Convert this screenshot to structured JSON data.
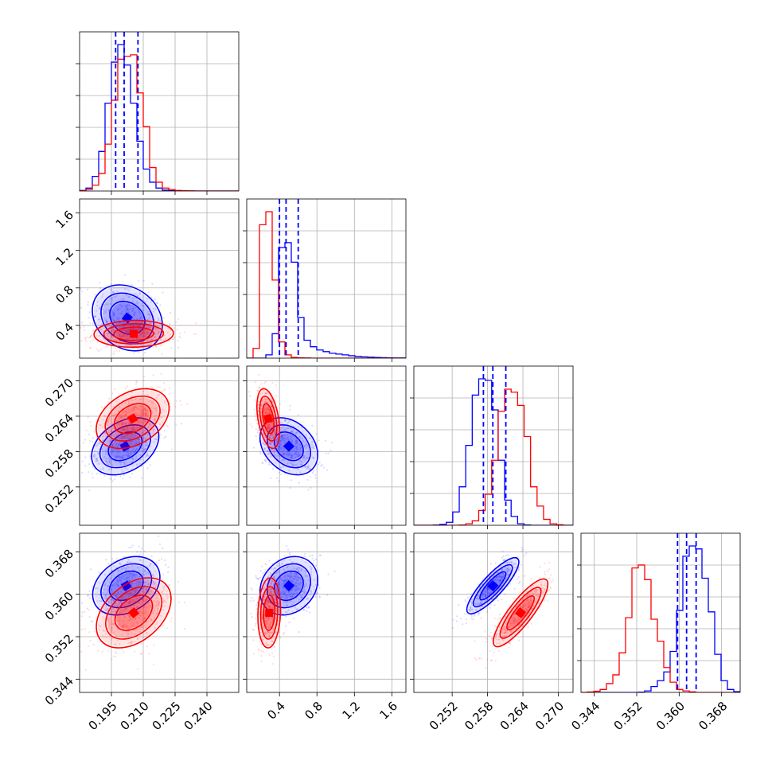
{
  "chart_data": {
    "type": "corner",
    "title": "",
    "series": [
      {
        "name": "",
        "color": "#0000ff"
      },
      {
        "name": "",
        "color": "#ff0000"
      }
    ],
    "parameters": [
      {
        "range": [
          0.18,
          0.255
        ],
        "ticks": [
          0.195,
          0.21,
          0.225,
          0.24
        ],
        "tick_labels": [
          "0.195",
          "0.210",
          "0.225",
          "0.240"
        ]
      },
      {
        "range": [
          0.05,
          1.75
        ],
        "ticks": [
          0.4,
          0.8,
          1.2,
          1.6
        ],
        "tick_labels": [
          "0.4",
          "0.8",
          "1.2",
          "1.6"
        ]
      },
      {
        "range": [
          0.2455,
          0.2725
        ],
        "ticks": [
          0.252,
          0.258,
          0.264,
          0.27
        ],
        "tick_labels": [
          "0.252",
          "0.258",
          "0.264",
          "0.270"
        ]
      },
      {
        "range": [
          0.3415,
          0.3715
        ],
        "ticks": [
          0.344,
          0.352,
          0.36,
          0.368
        ],
        "tick_labels": [
          "0.344",
          "0.352",
          "0.360",
          "0.368"
        ]
      }
    ],
    "quantile_lines": {
      "series": "blue",
      "values": [
        [
          0.197,
          0.201,
          0.2075
        ],
        [
          0.4,
          0.47,
          0.6
        ],
        [
          0.2573,
          0.2589,
          0.2611
        ],
        [
          0.3597,
          0.3614,
          0.3632
        ]
      ]
    },
    "histograms": [
      {
        "edges": [
          0.18,
          0.183,
          0.186,
          0.189,
          0.192,
          0.195,
          0.198,
          0.201,
          0.204,
          0.207,
          0.21,
          0.213,
          0.216,
          0.219,
          0.222,
          0.225,
          0.228,
          0.231,
          0.234,
          0.237,
          0.24,
          0.243,
          0.246,
          0.249,
          0.252,
          0.255
        ],
        "blue": [
          0.004,
          0.02,
          0.1,
          0.27,
          0.6,
          0.88,
          1.0,
          0.86,
          0.6,
          0.34,
          0.15,
          0.06,
          0.02,
          0.006,
          0.002,
          0.001,
          0,
          0,
          0,
          0,
          0,
          0,
          0,
          0,
          0
        ],
        "red": [
          0.002,
          0.01,
          0.04,
          0.12,
          0.32,
          0.62,
          0.9,
          0.92,
          0.93,
          0.67,
          0.44,
          0.16,
          0.06,
          0.02,
          0.01,
          0.004,
          0.002,
          0.001,
          0,
          0,
          0,
          0,
          0,
          0,
          0
        ]
      },
      {
        "edges": [
          0.05,
          0.118,
          0.186,
          0.254,
          0.322,
          0.39,
          0.458,
          0.526,
          0.594,
          0.662,
          0.73,
          0.798,
          0.866,
          0.934,
          1.002,
          1.07,
          1.138,
          1.206,
          1.274,
          1.342,
          1.41,
          1.478,
          1.546,
          1.614,
          1.682,
          1.75
        ],
        "blue": [
          0,
          0,
          0,
          0.02,
          0.15,
          0.68,
          0.71,
          0.59,
          0.25,
          0.11,
          0.07,
          0.05,
          0.04,
          0.03,
          0.025,
          0.02,
          0.015,
          0.01,
          0.008,
          0.006,
          0.004,
          0.003,
          0.002,
          0.001,
          0.001
        ],
        "red": [
          0,
          0.06,
          0.82,
          0.9,
          0.48,
          0.1,
          0.02,
          0.004,
          0.002,
          0.001,
          0,
          0,
          0,
          0,
          0,
          0,
          0,
          0,
          0,
          0,
          0,
          0,
          0,
          0,
          0
        ]
      },
      {
        "edges": [
          0.2455,
          0.2466,
          0.2477,
          0.2488,
          0.2499,
          0.251,
          0.2521,
          0.2532,
          0.2543,
          0.2554,
          0.2565,
          0.2576,
          0.2587,
          0.2598,
          0.2609,
          0.262,
          0.2631,
          0.2642,
          0.2653,
          0.2664,
          0.2675,
          0.2686,
          0.2697,
          0.2708,
          0.2719,
          0.273
        ],
        "blue": [
          0,
          0,
          0,
          0.002,
          0.006,
          0.02,
          0.09,
          0.26,
          0.54,
          0.88,
          0.99,
          0.98,
          0.78,
          0.44,
          0.17,
          0.06,
          0.01,
          0.002,
          0,
          0,
          0,
          0,
          0,
          0,
          0
        ],
        "red": [
          0,
          0,
          0,
          0,
          0,
          0,
          0,
          0.002,
          0.01,
          0.03,
          0.1,
          0.21,
          0.44,
          0.77,
          0.92,
          0.9,
          0.81,
          0.6,
          0.26,
          0.13,
          0.04,
          0.01,
          0.004,
          0,
          0
        ]
      },
      {
        "edges": [
          0.3415,
          0.3427,
          0.3439,
          0.3451,
          0.3463,
          0.3475,
          0.3487,
          0.3499,
          0.3511,
          0.3523,
          0.3535,
          0.3547,
          0.3559,
          0.3571,
          0.3583,
          0.3595,
          0.3607,
          0.3619,
          0.3631,
          0.3643,
          0.3655,
          0.3667,
          0.3679,
          0.3691,
          0.3703,
          0.3715
        ],
        "blue": [
          0,
          0,
          0,
          0,
          0,
          0,
          0,
          0,
          0,
          0.002,
          0.01,
          0.04,
          0.08,
          0.14,
          0.28,
          0.56,
          0.93,
          1.0,
          0.98,
          0.78,
          0.55,
          0.26,
          0.08,
          0.02,
          0.005
        ],
        "red": [
          0,
          0.003,
          0.008,
          0.02,
          0.06,
          0.12,
          0.27,
          0.51,
          0.85,
          0.87,
          0.77,
          0.5,
          0.35,
          0.17,
          0.07,
          0.02,
          0.01,
          0.004,
          0,
          0,
          0,
          0,
          0,
          0,
          0
        ]
      }
    ],
    "pairs": [
      {
        "x": 0,
        "y": 1,
        "blue": {
          "mean": [
            0.2025,
            0.48
          ],
          "std": [
            0.0075,
            0.16
          ],
          "rho": -0.22,
          "n": 420
        },
        "red": {
          "mean": [
            0.2055,
            0.31
          ],
          "std": [
            0.0085,
            0.065
          ],
          "rho": 0.05,
          "n": 420
        }
      },
      {
        "x": 0,
        "y": 2,
        "blue": {
          "mean": [
            0.2015,
            0.2589
          ],
          "std": [
            0.0072,
            0.0022
          ],
          "rho": 0.35,
          "n": 420
        },
        "red": {
          "mean": [
            0.205,
            0.2636
          ],
          "std": [
            0.0078,
            0.0023
          ],
          "rho": 0.35,
          "n": 420
        }
      },
      {
        "x": 1,
        "y": 2,
        "blue": {
          "mean": [
            0.5,
            0.2589
          ],
          "std": [
            0.14,
            0.0022
          ],
          "rho": -0.3,
          "n": 420
        },
        "red": {
          "mean": [
            0.28,
            0.2636
          ],
          "std": [
            0.055,
            0.0023
          ],
          "rho": -0.4,
          "n": 420
        }
      },
      {
        "x": 0,
        "y": 3,
        "blue": {
          "mean": [
            0.202,
            0.3616
          ],
          "std": [
            0.0072,
            0.0025
          ],
          "rho": 0.3,
          "n": 420
        },
        "red": {
          "mean": [
            0.2055,
            0.3565
          ],
          "std": [
            0.008,
            0.003
          ],
          "rho": 0.4,
          "n": 420
        }
      },
      {
        "x": 1,
        "y": 3,
        "blue": {
          "mean": [
            0.5,
            0.3616
          ],
          "std": [
            0.14,
            0.0025
          ],
          "rho": 0.2,
          "n": 420
        },
        "red": {
          "mean": [
            0.29,
            0.3565
          ],
          "std": [
            0.055,
            0.003
          ],
          "rho": 0.1,
          "n": 420
        }
      },
      {
        "x": 2,
        "y": 3,
        "blue": {
          "mean": [
            0.2589,
            0.3616
          ],
          "std": [
            0.002,
            0.0024
          ],
          "rho": 0.85,
          "n": 420
        },
        "red": {
          "mean": [
            0.2636,
            0.3565
          ],
          "std": [
            0.0021,
            0.0029
          ],
          "rho": 0.85,
          "n": 420
        }
      }
    ]
  }
}
